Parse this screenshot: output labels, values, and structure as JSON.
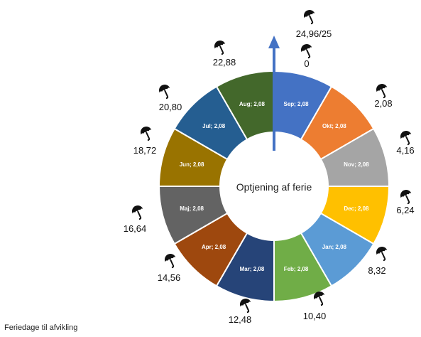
{
  "chart_data": {
    "type": "pie",
    "donut": true,
    "center_label": "Optjening af ferie",
    "footer_label": "Feriedage til afvikling",
    "slices": [
      {
        "month": "Sep",
        "value": 2.08,
        "label": "Sep; 2,08",
        "color": "#4472C4"
      },
      {
        "month": "Okt",
        "value": 2.08,
        "label": "Okt; 2,08",
        "color": "#ED7D31"
      },
      {
        "month": "Nov",
        "value": 2.08,
        "label": "Nov; 2,08",
        "color": "#A5A5A5"
      },
      {
        "month": "Dec",
        "value": 2.08,
        "label": "Dec; 2,08",
        "color": "#FFC000"
      },
      {
        "month": "Jan",
        "value": 2.08,
        "label": "Jan; 2,08",
        "color": "#5B9BD5"
      },
      {
        "month": "Feb",
        "value": 2.08,
        "label": "Feb; 2,08",
        "color": "#70AD47"
      },
      {
        "month": "Mar",
        "value": 2.08,
        "label": "Mar; 2,08",
        "color": "#264478"
      },
      {
        "month": "Apr",
        "value": 2.08,
        "label": "Apr; 2,08",
        "color": "#9E480E"
      },
      {
        "month": "Maj",
        "value": 2.08,
        "label": "Maj; 2,08",
        "color": "#636363"
      },
      {
        "month": "Jun",
        "value": 2.08,
        "label": "Jun; 2,08",
        "color": "#997300"
      },
      {
        "month": "Jul",
        "value": 2.08,
        "label": "Jul; 2,08",
        "color": "#255E91"
      },
      {
        "month": "Aug",
        "value": 2.08,
        "label": "Aug; 2,08",
        "color": "#43682B"
      }
    ],
    "cumulative_labels": [
      "0",
      "2,08",
      "4,16",
      "6,24",
      "8,32",
      "10,40",
      "12,48",
      "14,56",
      "16,64",
      "18,72",
      "20,80",
      "22,88",
      "24,96/25"
    ],
    "marker_icon": "umbrella-icon",
    "arrow_color": "#4472C4"
  }
}
